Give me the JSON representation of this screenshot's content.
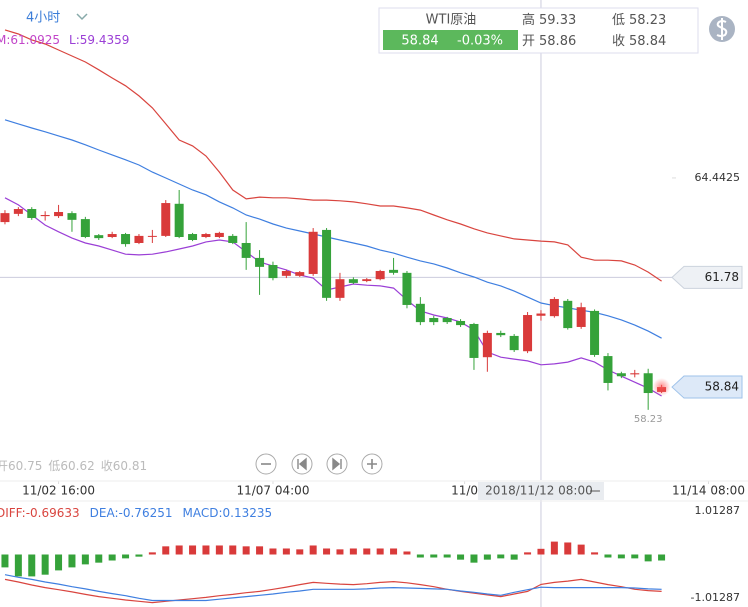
{
  "header": {
    "period": "4小时"
  },
  "quote": {
    "name": "WTI原油",
    "last": 58.84,
    "change": "-0.03%",
    "stats": [
      {
        "label": "高",
        "value": 59.33
      },
      {
        "label": "低",
        "value": 58.23
      },
      {
        "label": "开",
        "value": 58.86
      },
      {
        "label": "收",
        "value": 58.84
      }
    ]
  },
  "chart_data": {
    "type": "candlestick",
    "up_color": "#d93a3a",
    "down_color": "#35a23a",
    "open": [
      63.26,
      63.48,
      63.61,
      63.42,
      63.42,
      63.5,
      63.34,
      62.91,
      62.86,
      62.94,
      62.7,
      62.87,
      62.89,
      63.75,
      62.94,
      62.86,
      62.86,
      62.89,
      62.7,
      62.3,
      62.11,
      61.82,
      61.82,
      61.87,
      63.05,
      61.23,
      61.73,
      61.68,
      61.73,
      61.98,
      61.9,
      61.07,
      60.69,
      60.69,
      60.61,
      60.53,
      59.64,
      60.29,
      60.21,
      59.8,
      60.75,
      60.74,
      61.15,
      60.45,
      60.88,
      59.67,
      59.21,
      59.18,
      59.21,
      58.71
    ],
    "high": [
      63.58,
      63.66,
      63.66,
      63.55,
      63.72,
      63.55,
      63.4,
      62.94,
      63.0,
      62.97,
      62.94,
      63.05,
      63.85,
      64.12,
      62.97,
      62.97,
      63.0,
      62.94,
      63.26,
      62.51,
      62.2,
      61.98,
      61.95,
      63.1,
      63.1,
      61.9,
      61.78,
      61.76,
      61.98,
      62.3,
      61.95,
      61.25,
      60.75,
      60.72,
      60.66,
      60.56,
      60.35,
      60.35,
      60.26,
      60.85,
      60.9,
      61.25,
      61.2,
      61.1,
      60.92,
      59.75,
      59.25,
      59.3,
      59.33,
      58.9
    ],
    "low": [
      63.2,
      63.42,
      63.32,
      63.3,
      63.37,
      63.0,
      62.83,
      62.78,
      62.83,
      62.6,
      62.67,
      62.7,
      62.86,
      62.83,
      62.75,
      62.83,
      62.83,
      62.67,
      61.98,
      61.31,
      61.7,
      61.76,
      61.79,
      61.82,
      61.15,
      61.15,
      61.6,
      61.65,
      61.7,
      61.85,
      60.95,
      60.5,
      60.5,
      60.53,
      60.45,
      59.3,
      59.25,
      60.18,
      59.78,
      59.75,
      60.62,
      60.7,
      60.38,
      60.4,
      59.65,
      58.75,
      59.08,
      59.1,
      58.23,
      58.68
    ],
    "close": [
      63.5,
      63.61,
      63.37,
      63.45,
      63.53,
      63.32,
      62.86,
      62.83,
      62.94,
      62.67,
      62.89,
      62.89,
      63.77,
      62.86,
      62.78,
      62.94,
      62.97,
      62.7,
      62.3,
      62.06,
      61.76,
      61.95,
      61.92,
      63.0,
      61.23,
      61.73,
      61.63,
      61.73,
      61.95,
      61.9,
      61.04,
      60.58,
      60.58,
      60.58,
      60.5,
      59.62,
      60.29,
      60.23,
      59.83,
      60.77,
      60.81,
      61.2,
      60.42,
      60.98,
      59.7,
      58.95,
      59.13,
      59.21,
      58.68,
      58.84
    ],
    "upper_band": {
      "color": "#d9453f",
      "values": [
        68.41,
        68.3,
        68.14,
        68.03,
        67.87,
        67.71,
        67.55,
        67.34,
        67.12,
        66.91,
        66.64,
        66.32,
        65.89,
        65.46,
        65.3,
        65.03,
        64.6,
        64.12,
        63.88,
        63.93,
        63.91,
        63.91,
        63.88,
        63.85,
        63.85,
        63.83,
        63.8,
        63.75,
        63.69,
        63.69,
        63.64,
        63.58,
        63.45,
        63.32,
        63.21,
        63.08,
        62.97,
        62.89,
        62.81,
        62.78,
        62.75,
        62.73,
        62.65,
        62.32,
        62.24,
        62.24,
        62.22,
        62.11,
        61.92,
        61.68
      ]
    },
    "middle_band": {
      "label": "M:",
      "color": "#3f7fe0",
      "text_color": "#c246c9",
      "values": [
        66.0,
        65.89,
        65.78,
        65.68,
        65.57,
        65.46,
        65.33,
        65.19,
        65.06,
        64.93,
        64.79,
        64.6,
        64.44,
        64.28,
        64.12,
        63.99,
        63.8,
        63.64,
        63.45,
        63.34,
        63.21,
        63.1,
        63.02,
        62.94,
        62.86,
        62.78,
        62.7,
        62.62,
        62.51,
        62.43,
        62.32,
        62.22,
        62.14,
        62.03,
        61.9,
        61.79,
        61.65,
        61.55,
        61.41,
        61.25,
        61.0925,
        61.02,
        60.96,
        60.9,
        60.84,
        60.75,
        60.64,
        60.5,
        60.34,
        60.15
      ]
    },
    "lower_band": {
      "label": "L:",
      "color": "#9b3fd6",
      "values": [
        63.91,
        63.72,
        63.45,
        63.18,
        63.0,
        62.83,
        62.7,
        62.62,
        62.51,
        62.4,
        62.38,
        62.4,
        62.46,
        62.54,
        62.62,
        62.73,
        62.78,
        62.73,
        62.46,
        62.19,
        62.08,
        61.98,
        61.84,
        61.76,
        61.44,
        61.52,
        61.6,
        61.57,
        61.55,
        61.49,
        61.17,
        60.88,
        60.77,
        60.69,
        60.58,
        60.37,
        59.78,
        59.64,
        59.59,
        59.54,
        59.4359,
        59.46,
        59.51,
        59.62,
        59.51,
        59.3,
        59.13,
        58.97,
        58.81,
        58.6
      ]
    },
    "ohlc_legend": {
      "index": 40,
      "open": "开",
      "low": "低",
      "close": "收"
    },
    "xlim": [
      -0.37,
      55.45
    ],
    "ylim": [
      56.35,
      69.21
    ],
    "yticks": [
      64.4425
    ],
    "xticks": [
      {
        "value": 4,
        "label": "11/02 16:00"
      },
      {
        "value": 20,
        "label": "11/07 04:00"
      },
      {
        "value": 34.3,
        "label": "11/0"
      },
      {
        "value": 52.5,
        "label": "11/14 08:00"
      }
    ],
    "crosshair": {
      "x": 40,
      "x_label": "2018/11/12 08:00",
      "y": 61.78
    },
    "macd": {
      "type": "bar",
      "ylim": [
        -1.01287,
        1.01287
      ],
      "yticks": [
        1.01287,
        -1.01287
      ],
      "hist": {
        "label": "MACD:",
        "up_color": "#d93a3a",
        "down_color": "#35a23a",
        "text_color": "#3f7fe0",
        "values": [
          -0.3,
          -0.51,
          -0.51,
          -0.47,
          -0.37,
          -0.3,
          -0.23,
          -0.19,
          -0.14,
          -0.09,
          -0.05,
          0.05,
          0.19,
          0.21,
          0.21,
          0.21,
          0.21,
          0.21,
          0.19,
          0.19,
          0.14,
          0.14,
          0.12,
          0.21,
          0.14,
          0.12,
          0.14,
          0.14,
          0.14,
          0.14,
          0.07,
          -0.07,
          -0.07,
          -0.07,
          -0.12,
          -0.19,
          -0.12,
          -0.09,
          -0.12,
          0.05,
          0.13235,
          0.3,
          0.28,
          0.23,
          0.05,
          -0.07,
          -0.09,
          -0.09,
          -0.16,
          -0.14
        ]
      },
      "diff": {
        "label": "DIFF:",
        "color": "#d9453f",
        "values": [
          -0.58,
          -0.64,
          -0.71,
          -0.77,
          -0.82,
          -0.87,
          -0.93,
          -0.98,
          -1.02,
          -1.06,
          -1.09,
          -1.12,
          -1.09,
          -1.06,
          -1.03,
          -1.0,
          -0.96,
          -0.93,
          -0.89,
          -0.86,
          -0.81,
          -0.76,
          -0.7,
          -0.65,
          -0.67,
          -0.69,
          -0.7,
          -0.68,
          -0.65,
          -0.63,
          -0.66,
          -0.7,
          -0.75,
          -0.81,
          -0.86,
          -0.9,
          -0.94,
          -0.98,
          -0.92,
          -0.86,
          -0.69633,
          -0.65,
          -0.62,
          -0.58,
          -0.64,
          -0.7,
          -0.75,
          -0.81,
          -0.84,
          -0.86
        ]
      },
      "dea": {
        "label": "DEA:",
        "color": "#3f7fe0",
        "values": [
          -0.47,
          -0.53,
          -0.58,
          -0.64,
          -0.69,
          -0.75,
          -0.8,
          -0.86,
          -0.91,
          -0.96,
          -1.02,
          -1.07,
          -1.07,
          -1.07,
          -1.07,
          -1.07,
          -1.04,
          -1.01,
          -0.98,
          -0.95,
          -0.92,
          -0.88,
          -0.85,
          -0.81,
          -0.81,
          -0.81,
          -0.81,
          -0.8,
          -0.78,
          -0.77,
          -0.78,
          -0.79,
          -0.8,
          -0.81,
          -0.85,
          -0.88,
          -0.92,
          -0.95,
          -0.88,
          -0.82,
          -0.76251,
          -0.77,
          -0.77,
          -0.77,
          -0.77,
          -0.77,
          -0.77,
          -0.78,
          -0.8,
          -0.81
        ]
      }
    }
  }
}
